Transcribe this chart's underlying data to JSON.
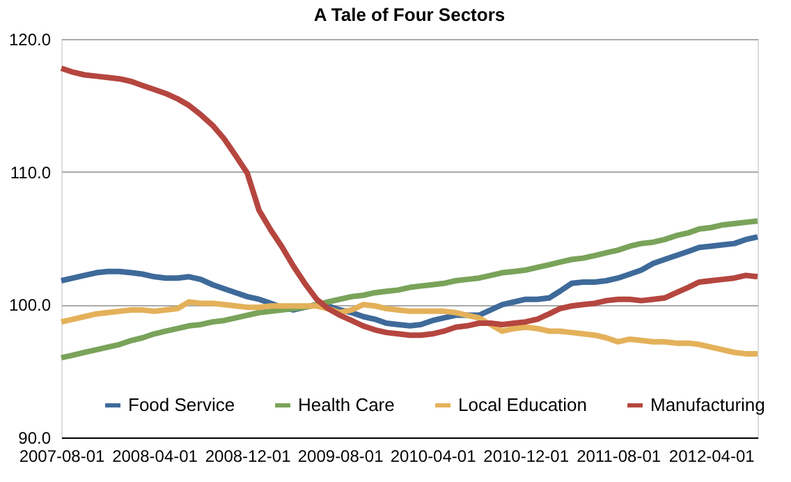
{
  "chart_data": {
    "type": "line",
    "title": "A Tale of Four Sectors",
    "x": [
      "2007-08-01",
      "2007-09-01",
      "2007-10-01",
      "2007-11-01",
      "2007-12-01",
      "2008-01-01",
      "2008-02-01",
      "2008-03-01",
      "2008-04-01",
      "2008-05-01",
      "2008-06-01",
      "2008-07-01",
      "2008-08-01",
      "2008-09-01",
      "2008-10-01",
      "2008-11-01",
      "2008-12-01",
      "2009-01-01",
      "2009-02-01",
      "2009-03-01",
      "2009-04-01",
      "2009-05-01",
      "2009-06-01",
      "2009-07-01",
      "2009-08-01",
      "2009-09-01",
      "2009-10-01",
      "2009-11-01",
      "2009-12-01",
      "2010-01-01",
      "2010-02-01",
      "2010-03-01",
      "2010-04-01",
      "2010-05-01",
      "2010-06-01",
      "2010-07-01",
      "2010-08-01",
      "2010-09-01",
      "2010-10-01",
      "2010-11-01",
      "2010-12-01",
      "2011-01-01",
      "2011-02-01",
      "2011-03-01",
      "2011-04-01",
      "2011-05-01",
      "2011-06-01",
      "2011-07-01",
      "2011-08-01",
      "2011-09-01",
      "2011-10-01",
      "2011-11-01",
      "2011-12-01",
      "2012-01-01",
      "2012-02-01",
      "2012-03-01",
      "2012-04-01",
      "2012-05-01",
      "2012-06-01",
      "2012-07-01",
      "2012-08-01"
    ],
    "series": [
      {
        "name": "Food Service",
        "color": "#3e6a9a",
        "values": [
          101.8,
          102.0,
          102.2,
          102.4,
          102.5,
          102.5,
          102.4,
          102.3,
          102.1,
          102.0,
          102.0,
          102.1,
          101.9,
          101.5,
          101.2,
          100.9,
          100.6,
          100.4,
          100.1,
          99.8,
          99.6,
          99.8,
          100.0,
          99.9,
          99.6,
          99.4,
          99.1,
          98.9,
          98.6,
          98.5,
          98.4,
          98.5,
          98.8,
          99.0,
          99.2,
          99.2,
          99.2,
          99.6,
          100.0,
          100.2,
          100.4,
          100.4,
          100.5,
          101.0,
          101.6,
          101.7,
          101.7,
          101.8,
          102.0,
          102.3,
          102.6,
          103.1,
          103.4,
          103.7,
          104.0,
          104.3,
          104.4,
          104.5,
          104.6,
          104.9,
          105.1
        ]
      },
      {
        "name": "Health Care",
        "color": "#7aa35a",
        "values": [
          96.0,
          96.2,
          96.4,
          96.6,
          96.8,
          97.0,
          97.3,
          97.5,
          97.8,
          98.0,
          98.2,
          98.4,
          98.5,
          98.7,
          98.8,
          99.0,
          99.2,
          99.4,
          99.5,
          99.6,
          99.7,
          99.8,
          100.0,
          100.2,
          100.4,
          100.6,
          100.7,
          100.9,
          101.0,
          101.1,
          101.3,
          101.4,
          101.5,
          101.6,
          101.8,
          101.9,
          102.0,
          102.2,
          102.4,
          102.5,
          102.6,
          102.8,
          103.0,
          103.2,
          103.4,
          103.5,
          103.7,
          103.9,
          104.1,
          104.4,
          104.6,
          104.7,
          104.9,
          105.2,
          105.4,
          105.7,
          105.8,
          106.0,
          106.1,
          106.2,
          106.3
        ]
      },
      {
        "name": "Local Education",
        "color": "#e4b15a",
        "values": [
          98.7,
          98.9,
          99.1,
          99.3,
          99.4,
          99.5,
          99.6,
          99.6,
          99.5,
          99.6,
          99.7,
          100.2,
          100.1,
          100.1,
          100.0,
          99.9,
          99.8,
          99.8,
          99.9,
          99.9,
          99.9,
          99.9,
          99.9,
          99.7,
          99.4,
          99.6,
          100.0,
          99.9,
          99.7,
          99.6,
          99.5,
          99.5,
          99.5,
          99.5,
          99.4,
          99.2,
          99.0,
          98.5,
          98.0,
          98.2,
          98.3,
          98.2,
          98.0,
          98.0,
          97.9,
          97.8,
          97.7,
          97.5,
          97.2,
          97.4,
          97.3,
          97.2,
          97.2,
          97.1,
          97.1,
          97.0,
          96.8,
          96.6,
          96.4,
          96.3,
          96.3
        ]
      },
      {
        "name": "Manufacturing",
        "color": "#b5463f",
        "values": [
          117.8,
          117.5,
          117.3,
          117.2,
          117.1,
          117.0,
          116.8,
          116.5,
          116.2,
          115.9,
          115.5,
          115.0,
          114.3,
          113.5,
          112.5,
          111.2,
          109.9,
          107.1,
          105.6,
          104.4,
          102.9,
          101.6,
          100.4,
          99.7,
          99.2,
          98.8,
          98.4,
          98.1,
          97.9,
          97.8,
          97.7,
          97.7,
          97.8,
          98.0,
          98.3,
          98.4,
          98.6,
          98.6,
          98.5,
          98.6,
          98.7,
          98.9,
          99.3,
          99.7,
          99.9,
          100.0,
          100.1,
          100.3,
          100.4,
          100.4,
          100.3,
          100.4,
          100.5,
          100.9,
          101.3,
          101.7,
          101.8,
          101.9,
          102.0,
          102.2,
          102.1
        ]
      }
    ],
    "xlim": [
      "2007-08-01",
      "2012-08-01"
    ],
    "xticks": [
      "2007-08-01",
      "2008-04-01",
      "2008-12-01",
      "2009-08-01",
      "2010-04-01",
      "2010-12-01",
      "2011-08-01",
      "2012-04-01"
    ],
    "ylim": [
      90,
      120
    ],
    "yticks": [
      {
        "value": 90,
        "label": "90.0"
      },
      {
        "value": 100,
        "label": "100.0"
      },
      {
        "value": 110,
        "label": "110.0"
      },
      {
        "value": 120,
        "label": "120.0"
      }
    ],
    "grid": "y",
    "legend": "bottom",
    "line_style": "solid",
    "marker": "none"
  }
}
